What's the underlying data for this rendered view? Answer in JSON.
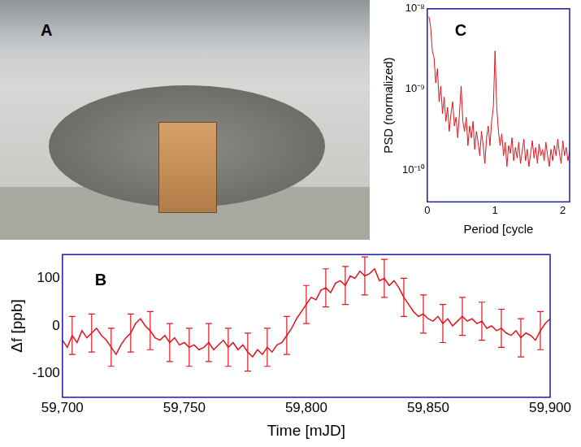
{
  "chart_data": [
    {
      "panel": "A",
      "type": "photo"
    },
    {
      "panel": "B",
      "type": "line",
      "xlabel": "Time [mJD]",
      "ylabel": "Δf [ppb]",
      "grid": false,
      "xlim": [
        59700,
        59900
      ],
      "xticks": [
        {
          "value": 59700,
          "label": "59,700"
        },
        {
          "value": 59750,
          "label": "59,750"
        },
        {
          "value": 59800,
          "label": "59,800"
        },
        {
          "value": 59850,
          "label": "59,850"
        },
        {
          "value": 59900,
          "label": "59,900"
        }
      ],
      "ylim": [
        -150,
        150
      ],
      "yticks": [
        -100,
        0,
        100
      ],
      "x": [
        59700,
        59702,
        59704,
        59706,
        59708,
        59710,
        59712,
        59714,
        59716,
        59718,
        59720,
        59722,
        59724,
        59726,
        59728,
        59730,
        59732,
        59734,
        59736,
        59738,
        59740,
        59742,
        59744,
        59746,
        59748,
        59750,
        59752,
        59754,
        59756,
        59758,
        59760,
        59762,
        59764,
        59766,
        59768,
        59770,
        59772,
        59774,
        59776,
        59778,
        59780,
        59782,
        59784,
        59786,
        59788,
        59790,
        59792,
        59794,
        59796,
        59798,
        59800,
        59802,
        59804,
        59806,
        59808,
        59810,
        59812,
        59814,
        59816,
        59818,
        59820,
        59822,
        59824,
        59826,
        59828,
        59830,
        59832,
        59834,
        59836,
        59838,
        59840,
        59842,
        59844,
        59846,
        59848,
        59850,
        59852,
        59854,
        59856,
        59858,
        59860,
        59862,
        59864,
        59866,
        59868,
        59870,
        59872,
        59874,
        59876,
        59878,
        59880,
        59882,
        59884,
        59886,
        59888,
        59890,
        59892,
        59894,
        59896,
        59898,
        59900
      ],
      "series": [
        {
          "color": "#e0141e",
          "values": [
            -30,
            -45,
            -20,
            -35,
            -10,
            -25,
            -15,
            -5,
            -20,
            -30,
            -45,
            -60,
            -40,
            -25,
            -15,
            5,
            15,
            0,
            -10,
            -25,
            -30,
            -20,
            -35,
            -25,
            -40,
            -35,
            -45,
            -40,
            -50,
            -45,
            -35,
            -50,
            -40,
            -30,
            -45,
            -35,
            -50,
            -40,
            -55,
            -65,
            -50,
            -60,
            -45,
            -55,
            -40,
            -35,
            -20,
            -5,
            15,
            30,
            45,
            60,
            55,
            75,
            80,
            70,
            90,
            95,
            85,
            105,
            100,
            115,
            105,
            110,
            120,
            95,
            100,
            85,
            95,
            80,
            60,
            45,
            30,
            20,
            25,
            15,
            10,
            20,
            5,
            15,
            0,
            10,
            20,
            10,
            15,
            5,
            10,
            -5,
            0,
            -10,
            -5,
            -15,
            -20,
            -10,
            -25,
            -15,
            -20,
            -30,
            -10,
            5,
            15
          ],
          "errors": [
            null,
            null,
            40,
            null,
            null,
            null,
            40,
            null,
            null,
            null,
            40,
            null,
            null,
            null,
            40,
            null,
            null,
            null,
            40,
            null,
            null,
            null,
            40,
            null,
            null,
            null,
            40,
            null,
            null,
            null,
            40,
            null,
            null,
            null,
            40,
            null,
            null,
            null,
            40,
            null,
            null,
            null,
            40,
            null,
            null,
            null,
            40,
            null,
            null,
            null,
            40,
            null,
            null,
            null,
            40,
            null,
            null,
            null,
            40,
            null,
            null,
            null,
            40,
            null,
            null,
            null,
            40,
            null,
            null,
            null,
            40,
            null,
            null,
            null,
            40,
            null,
            null,
            null,
            40,
            null,
            null,
            null,
            40,
            null,
            null,
            null,
            40,
            null,
            null,
            null,
            40,
            null,
            null,
            null,
            40,
            null,
            null,
            null,
            40,
            null,
            null
          ]
        }
      ]
    },
    {
      "panel": "C",
      "type": "line",
      "xlabel": "Period [cycle",
      "ylabel": "PSD (normalized)",
      "grid": false,
      "log": "y",
      "xlim": [
        0,
        2.1
      ],
      "xticks": [
        0,
        1,
        2
      ],
      "ylim": [
        4e-11,
        1e-08
      ],
      "yticks": [
        {
          "value": 1e-10,
          "label": "10⁻¹⁰"
        },
        {
          "value": 1e-09,
          "label": "10⁻⁹"
        },
        {
          "value": 1e-08,
          "label": "10⁻⁸"
        }
      ],
      "x": [
        0.025,
        0.05,
        0.075,
        0.1,
        0.125,
        0.15,
        0.175,
        0.2,
        0.225,
        0.25,
        0.275,
        0.3,
        0.325,
        0.35,
        0.375,
        0.4,
        0.425,
        0.45,
        0.475,
        0.5,
        0.525,
        0.55,
        0.575,
        0.6,
        0.625,
        0.65,
        0.675,
        0.7,
        0.725,
        0.75,
        0.775,
        0.8,
        0.825,
        0.85,
        0.875,
        0.9,
        0.925,
        0.95,
        0.975,
        1.0,
        1.025,
        1.05,
        1.075,
        1.1,
        1.125,
        1.15,
        1.175,
        1.2,
        1.225,
        1.25,
        1.275,
        1.3,
        1.325,
        1.35,
        1.375,
        1.4,
        1.425,
        1.45,
        1.475,
        1.5,
        1.525,
        1.55,
        1.575,
        1.6,
        1.625,
        1.65,
        1.675,
        1.7,
        1.725,
        1.75,
        1.775,
        1.8,
        1.825,
        1.85,
        1.875,
        1.9,
        1.925,
        1.95,
        1.975,
        2.0,
        2.025,
        2.05,
        2.075,
        2.1
      ],
      "series": [
        {
          "color": "#e0141e",
          "values": [
            8e-09,
            6e-09,
            3e-09,
            2.5e-09,
            1.2e-09,
            1.8e-09,
            7e-10,
            1.1e-09,
            5e-10,
            8e-10,
            4e-10,
            6e-10,
            3e-10,
            5e-10,
            7e-10,
            3.5e-10,
            4.5e-10,
            2.5e-10,
            5e-10,
            1.1e-09,
            4e-10,
            3e-10,
            4.5e-10,
            2e-10,
            3.5e-10,
            2.5e-10,
            4e-10,
            1.8e-10,
            3e-10,
            2.2e-10,
            1.5e-10,
            3e-10,
            2e-10,
            1.2e-10,
            2.5e-10,
            3.5e-10,
            2e-10,
            4e-10,
            6e-10,
            3e-09,
            6e-10,
            3e-10,
            2e-10,
            2.8e-10,
            1.5e-10,
            2.2e-10,
            1.1e-10,
            2e-10,
            1.6e-10,
            2.5e-10,
            1.3e-10,
            1.9e-10,
            1.4e-10,
            2.2e-10,
            1.2e-10,
            1.7e-10,
            2.4e-10,
            1.3e-10,
            1.8e-10,
            1.1e-10,
            1.6e-10,
            2.3e-10,
            1.4e-10,
            1.9e-10,
            1.2e-10,
            2.1e-10,
            1.5e-10,
            1.8e-10,
            1.3e-10,
            2.2e-10,
            1.5e-10,
            1.1e-10,
            1.8e-10,
            1.3e-10,
            2e-10,
            1.5e-10,
            2.4e-10,
            1.6e-10,
            1.2e-10,
            2.3e-10,
            1.5e-10,
            1.9e-10,
            1.3e-10,
            1.7e-10
          ]
        }
      ]
    }
  ]
}
